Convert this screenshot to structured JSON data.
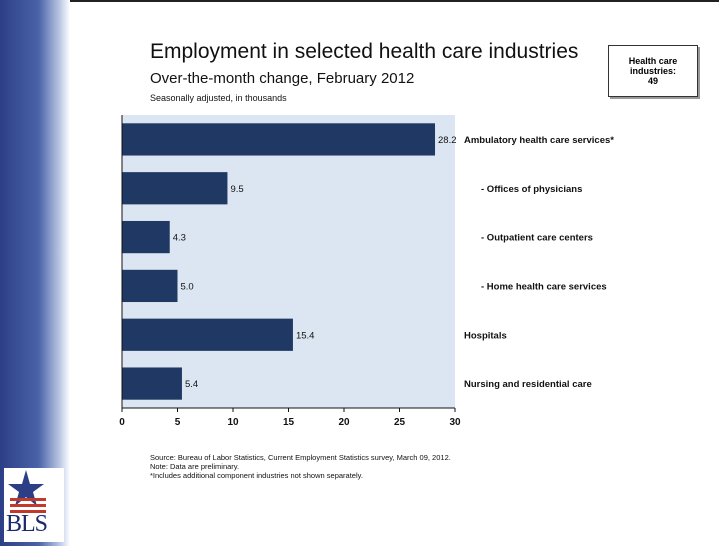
{
  "header": {
    "title": "Employment in selected health care industries",
    "subtitle": "Over-the-month change, February 2012",
    "note": "Seasonally adjusted, in thousands"
  },
  "badge": {
    "line1": "Health care",
    "line2": "industries:",
    "line3": "49"
  },
  "footer": {
    "source": "Source: Bureau of Labor Statistics, Current Employment Statistics survey, March 09, 2012.",
    "note": "Note: Data are preliminary.",
    "footnote": "*Includes additional component industries not shown separately."
  },
  "logo": {
    "text": "BLS"
  },
  "chart_data": {
    "type": "bar",
    "orientation": "horizontal",
    "categories": [
      "Ambulatory health care services*",
      "- Offices of physicians",
      "- Outpatient care centers",
      "- Home health care services",
      "Hospitals",
      "Nursing and residential care"
    ],
    "values": [
      28.2,
      9.5,
      4.3,
      5.0,
      15.4,
      5.4
    ],
    "value_labels": [
      "28.2",
      "9.5",
      "4.3",
      "5.0",
      "15.4",
      "5.4"
    ],
    "xlim": [
      0,
      30
    ],
    "xticks": [
      "0",
      "5",
      "10",
      "15",
      "20",
      "25",
      "30"
    ],
    "title": "",
    "xlabel": "",
    "ylabel": "",
    "grid": false,
    "legend": "none",
    "colors": {
      "bar": "#1f3864",
      "plot_bg": "#dce6f2"
    }
  }
}
